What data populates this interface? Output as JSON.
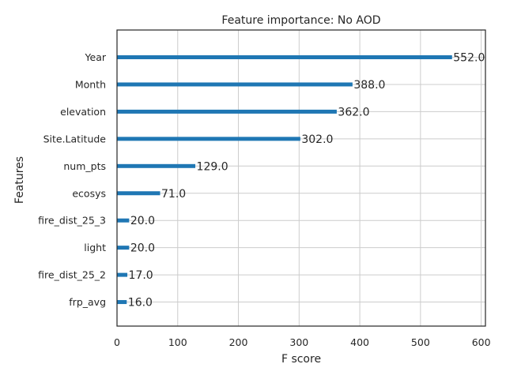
{
  "chart_data": {
    "type": "bar",
    "orientation": "horizontal",
    "title": "Feature importance: No AOD",
    "xlabel": "F score",
    "ylabel": "Features",
    "categories": [
      "Year",
      "Month",
      "elevation",
      "Site.Latitude",
      "num_pts",
      "ecosys",
      "fire_dist_25_3",
      "light",
      "fire_dist_25_2",
      "frp_avg"
    ],
    "values": [
      552.0,
      388.0,
      362.0,
      302.0,
      129.0,
      71.0,
      20.0,
      20.0,
      17.0,
      16.0
    ],
    "data_labels": [
      "552.0",
      "388.0",
      "362.0",
      "302.0",
      "129.0",
      "71.0",
      "20.0",
      "20.0",
      "17.0",
      "16.0"
    ],
    "xlim": [
      0,
      607
    ],
    "xticks": [
      0,
      100,
      200,
      300,
      400,
      500,
      600
    ],
    "grid": true,
    "bar_color": "#1f77b4"
  }
}
